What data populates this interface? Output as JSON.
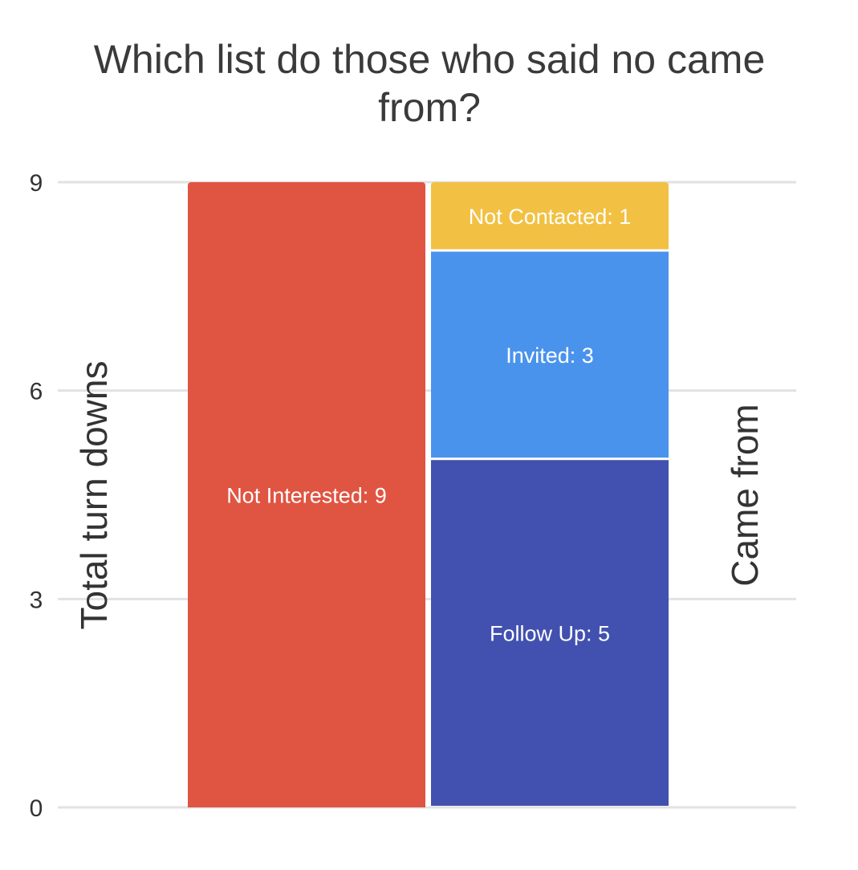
{
  "chart_data": {
    "type": "bar",
    "stacked": true,
    "title": "Which list do those who said no came from?",
    "ylabel": "Total turn downs",
    "ylabel_right": "Came from",
    "ylim": [
      0,
      9
    ],
    "yticks": [
      0,
      3,
      6,
      9
    ],
    "grid": true,
    "legend": "none",
    "bars": [
      {
        "segments": [
          {
            "label": "Not Interested: 9",
            "value": 9,
            "color": "#E05442"
          }
        ]
      },
      {
        "segments": [
          {
            "label": "Follow Up: 5",
            "value": 5,
            "color": "#4251AF"
          },
          {
            "label": "Invited: 3",
            "value": 3,
            "color": "#4A93EC"
          },
          {
            "label": "Not Contacted: 1",
            "value": 1,
            "color": "#F2C143"
          }
        ]
      }
    ]
  }
}
